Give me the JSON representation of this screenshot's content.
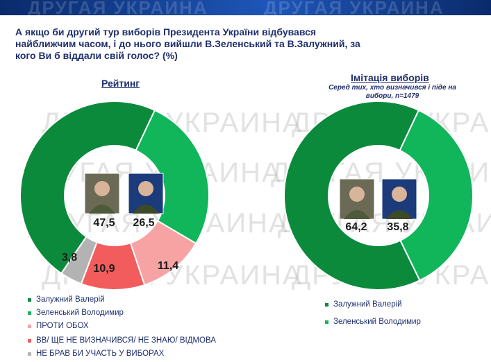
{
  "watermark": "ДРУГАЯ УКРАИНА",
  "question": "А якщо би другий тур виборів Президента України відбувався найближчим часом, і до нього вийшли В.Зеленський та В.Залужний, за кого Ви б віддали свій голос? (%)",
  "chart_data": [
    {
      "type": "pie",
      "title": "Рейтинг",
      "subtitle": "",
      "categories": [
        "Залужний Валерій",
        "Зеленський Володимир",
        "ПРОТИ ОБОХ",
        "ВВ/ ЩЕ НЕ ВИЗНАЧИВСЯ/ НЕ ЗНАЮ/ ВІДМОВА",
        "НЕ БРАВ БИ УЧАСТЬ У ВИБОРАХ"
      ],
      "values": [
        47.5,
        26.5,
        11.4,
        10.9,
        3.8
      ],
      "value_labels": [
        "47,5",
        "26,5",
        "11,4",
        "10,9",
        "3,8"
      ],
      "colors": [
        "#0b8a3b",
        "#11b55a",
        "#f7a3a3",
        "#f25c5c",
        "#b3b3b3"
      ],
      "legend_placement": "bottom-left"
    },
    {
      "type": "pie",
      "title": "Імітація виборів",
      "subtitle": "Серед тих, хто визначився і піде на вибори, n=1479",
      "categories": [
        "Залужний Валерій",
        "Зеленський Володимир"
      ],
      "values": [
        64.2,
        35.8
      ],
      "value_labels": [
        "64,2",
        "35,8"
      ],
      "colors": [
        "#0b8a3b",
        "#11b55a"
      ],
      "legend_placement": "bottom"
    }
  ]
}
